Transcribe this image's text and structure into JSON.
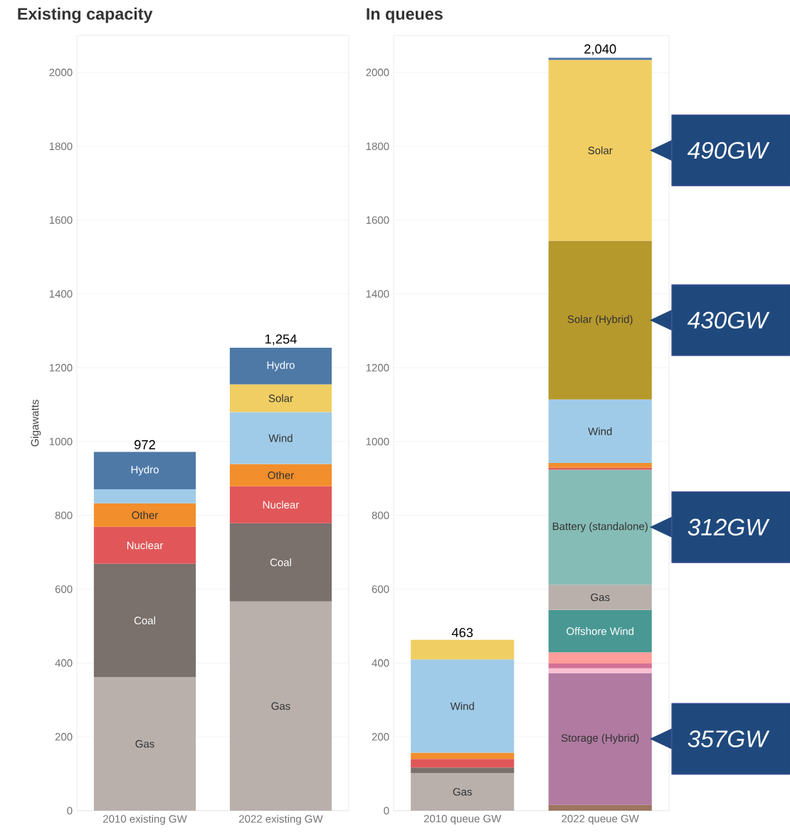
{
  "chart_data": [
    {
      "type": "bar",
      "title": "Existing capacity",
      "ylabel": "Gigawatts",
      "categories": [
        "2010 existing GW",
        "2022 existing GW"
      ],
      "stacked": true,
      "ylim": [
        0,
        2100
      ],
      "yticks": [
        0,
        200,
        400,
        600,
        800,
        1000,
        1200,
        1400,
        1600,
        1800,
        2000
      ],
      "grid": "y",
      "totals": [
        "972",
        "1,254"
      ],
      "series": [
        {
          "name": "Gas",
          "color": "#b9b0ac",
          "values": [
            362,
            567
          ]
        },
        {
          "name": "Coal",
          "color": "#7a706c",
          "values": [
            307,
            212
          ]
        },
        {
          "name": "Nuclear",
          "color": "#e15759",
          "values": [
            100,
            100
          ]
        },
        {
          "name": "Other",
          "color": "#f28e2b",
          "values": [
            64,
            60
          ]
        },
        {
          "color": "#a0cbe8",
          "values": [
            38,
            null
          ]
        },
        {
          "name": "Wind",
          "color": "#a0cbe8",
          "values": [
            null,
            141
          ]
        },
        {
          "name": "Solar",
          "color": "#f1ce63",
          "values": [
            null,
            75
          ]
        },
        {
          "name": "Hydro",
          "color": "#4e79a7",
          "values": [
            101,
            99
          ]
        }
      ]
    },
    {
      "type": "bar",
      "title": "In queues",
      "categories": [
        "2010 queue GW",
        "2022 queue GW"
      ],
      "stacked": true,
      "ylim": [
        0,
        2100
      ],
      "yticks": [
        0,
        200,
        400,
        600,
        800,
        1000,
        1200,
        1400,
        1600,
        1800,
        2000
      ],
      "grid": "y",
      "totals": [
        "463",
        "2,040"
      ],
      "annotations": [
        "490GW",
        "430GW",
        "312GW",
        "357GW"
      ],
      "series": [
        {
          "color": "#9d7660",
          "values": [
            null,
            16
          ]
        },
        {
          "name": "Gas",
          "color": "#b9b0ac",
          "values": [
            102,
            null
          ]
        },
        {
          "color": "#7a706c",
          "values": [
            15,
            null
          ]
        },
        {
          "color": "#e15759",
          "values": [
            23,
            null
          ]
        },
        {
          "color": "#f28e2b",
          "values": [
            17,
            null
          ]
        },
        {
          "name": "Wind",
          "color": "#a0cbe8",
          "values": [
            253,
            null
          ]
        },
        {
          "color": "#f1ce63",
          "values": [
            53,
            null
          ]
        },
        {
          "name": "Storage (Hybrid)",
          "color": "#b07aa1",
          "values": [
            null,
            357
          ]
        },
        {
          "color": "#fabfd2",
          "values": [
            null,
            13
          ]
        },
        {
          "color": "#d37295",
          "values": [
            null,
            13
          ]
        },
        {
          "color": "#ff9d9a",
          "values": [
            null,
            30
          ]
        },
        {
          "name": "Offshore Wind",
          "color": "#499894",
          "values": [
            null,
            115
          ]
        },
        {
          "name": "Gas",
          "color": "#b9b0ac",
          "values": [
            null,
            68
          ]
        },
        {
          "name": "Battery (standalone)",
          "color": "#86bcb6",
          "values": [
            null,
            312
          ]
        },
        {
          "color": "#e15759",
          "values": [
            null,
            5
          ]
        },
        {
          "color": "#f28e2b",
          "values": [
            null,
            13
          ]
        },
        {
          "name": "Wind",
          "color": "#a0cbe8",
          "values": [
            null,
            172
          ]
        },
        {
          "name": "Solar (Hybrid)",
          "color": "#b6992d",
          "values": [
            null,
            430
          ]
        },
        {
          "name": "Solar",
          "color": "#f1ce63",
          "values": [
            null,
            490
          ]
        },
        {
          "color": "#4e79a7",
          "values": [
            null,
            6
          ]
        }
      ]
    }
  ]
}
